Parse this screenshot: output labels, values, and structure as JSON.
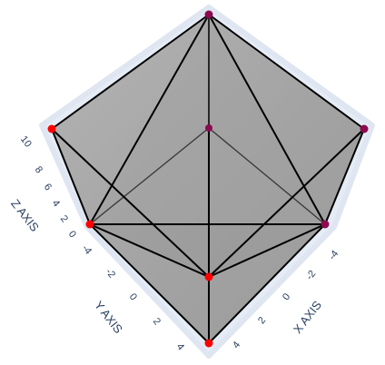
{
  "chart_data": {
    "type": "mesh3d",
    "axes": {
      "x": {
        "title": "X AXIS",
        "ticks": [
          "-4",
          "-2",
          "0",
          "2",
          "4"
        ],
        "range": [
          -5,
          5
        ]
      },
      "y": {
        "title": "Y AXIS",
        "ticks": [
          "-4",
          "-2",
          "0",
          "2",
          "4"
        ],
        "range": [
          -5,
          5
        ]
      },
      "z": {
        "title": "Z AXIS",
        "ticks": [
          "0",
          "2",
          "4",
          "6",
          "8",
          "10"
        ],
        "range": [
          0,
          10
        ]
      }
    },
    "vertices": [
      {
        "id": "top",
        "x": 0,
        "y": 0,
        "z": 10
      },
      {
        "id": "left-mid",
        "x": -5,
        "y": 0,
        "z": 5
      },
      {
        "id": "right-mid",
        "x": 5,
        "y": 0,
        "z": 5
      },
      {
        "id": "left-low",
        "x": -4,
        "y": -4,
        "z": 0
      },
      {
        "id": "right-low",
        "x": 4,
        "y": -4,
        "z": 0
      },
      {
        "id": "center",
        "x": 0,
        "y": 0,
        "z": 0
      },
      {
        "id": "front-mid",
        "x": 0,
        "y": 4,
        "z": 0
      },
      {
        "id": "bottom",
        "x": 0,
        "y": 5,
        "z": -5
      }
    ],
    "edges": [
      [
        "top",
        "left-mid"
      ],
      [
        "top",
        "right-mid"
      ],
      [
        "top",
        "left-low"
      ],
      [
        "top",
        "right-low"
      ],
      [
        "top",
        "front-mid"
      ],
      [
        "top",
        "center"
      ],
      [
        "center",
        "left-low"
      ],
      [
        "center",
        "right-low"
      ],
      [
        "left-mid",
        "left-low"
      ],
      [
        "left-mid",
        "front-mid"
      ],
      [
        "right-mid",
        "right-low"
      ],
      [
        "right-mid",
        "front-mid"
      ],
      [
        "left-low",
        "right-low"
      ],
      [
        "left-low",
        "front-mid"
      ],
      [
        "right-low",
        "front-mid"
      ],
      [
        "left-low",
        "bottom"
      ],
      [
        "right-low",
        "bottom"
      ],
      [
        "front-mid",
        "bottom"
      ]
    ],
    "vertex_colors": {
      "top": "#8b0a50",
      "left-mid": "#ff0000",
      "right-mid": "#8b0a50",
      "left-low": "#ff0000",
      "right-low": "#8b0a50",
      "center": "#8b0a50",
      "front-mid": "#ff0000",
      "bottom": "#ff0000"
    },
    "mesh_color": "#a5a5a5",
    "edge_color": "#000000",
    "background_color": "#e5ecf6"
  }
}
